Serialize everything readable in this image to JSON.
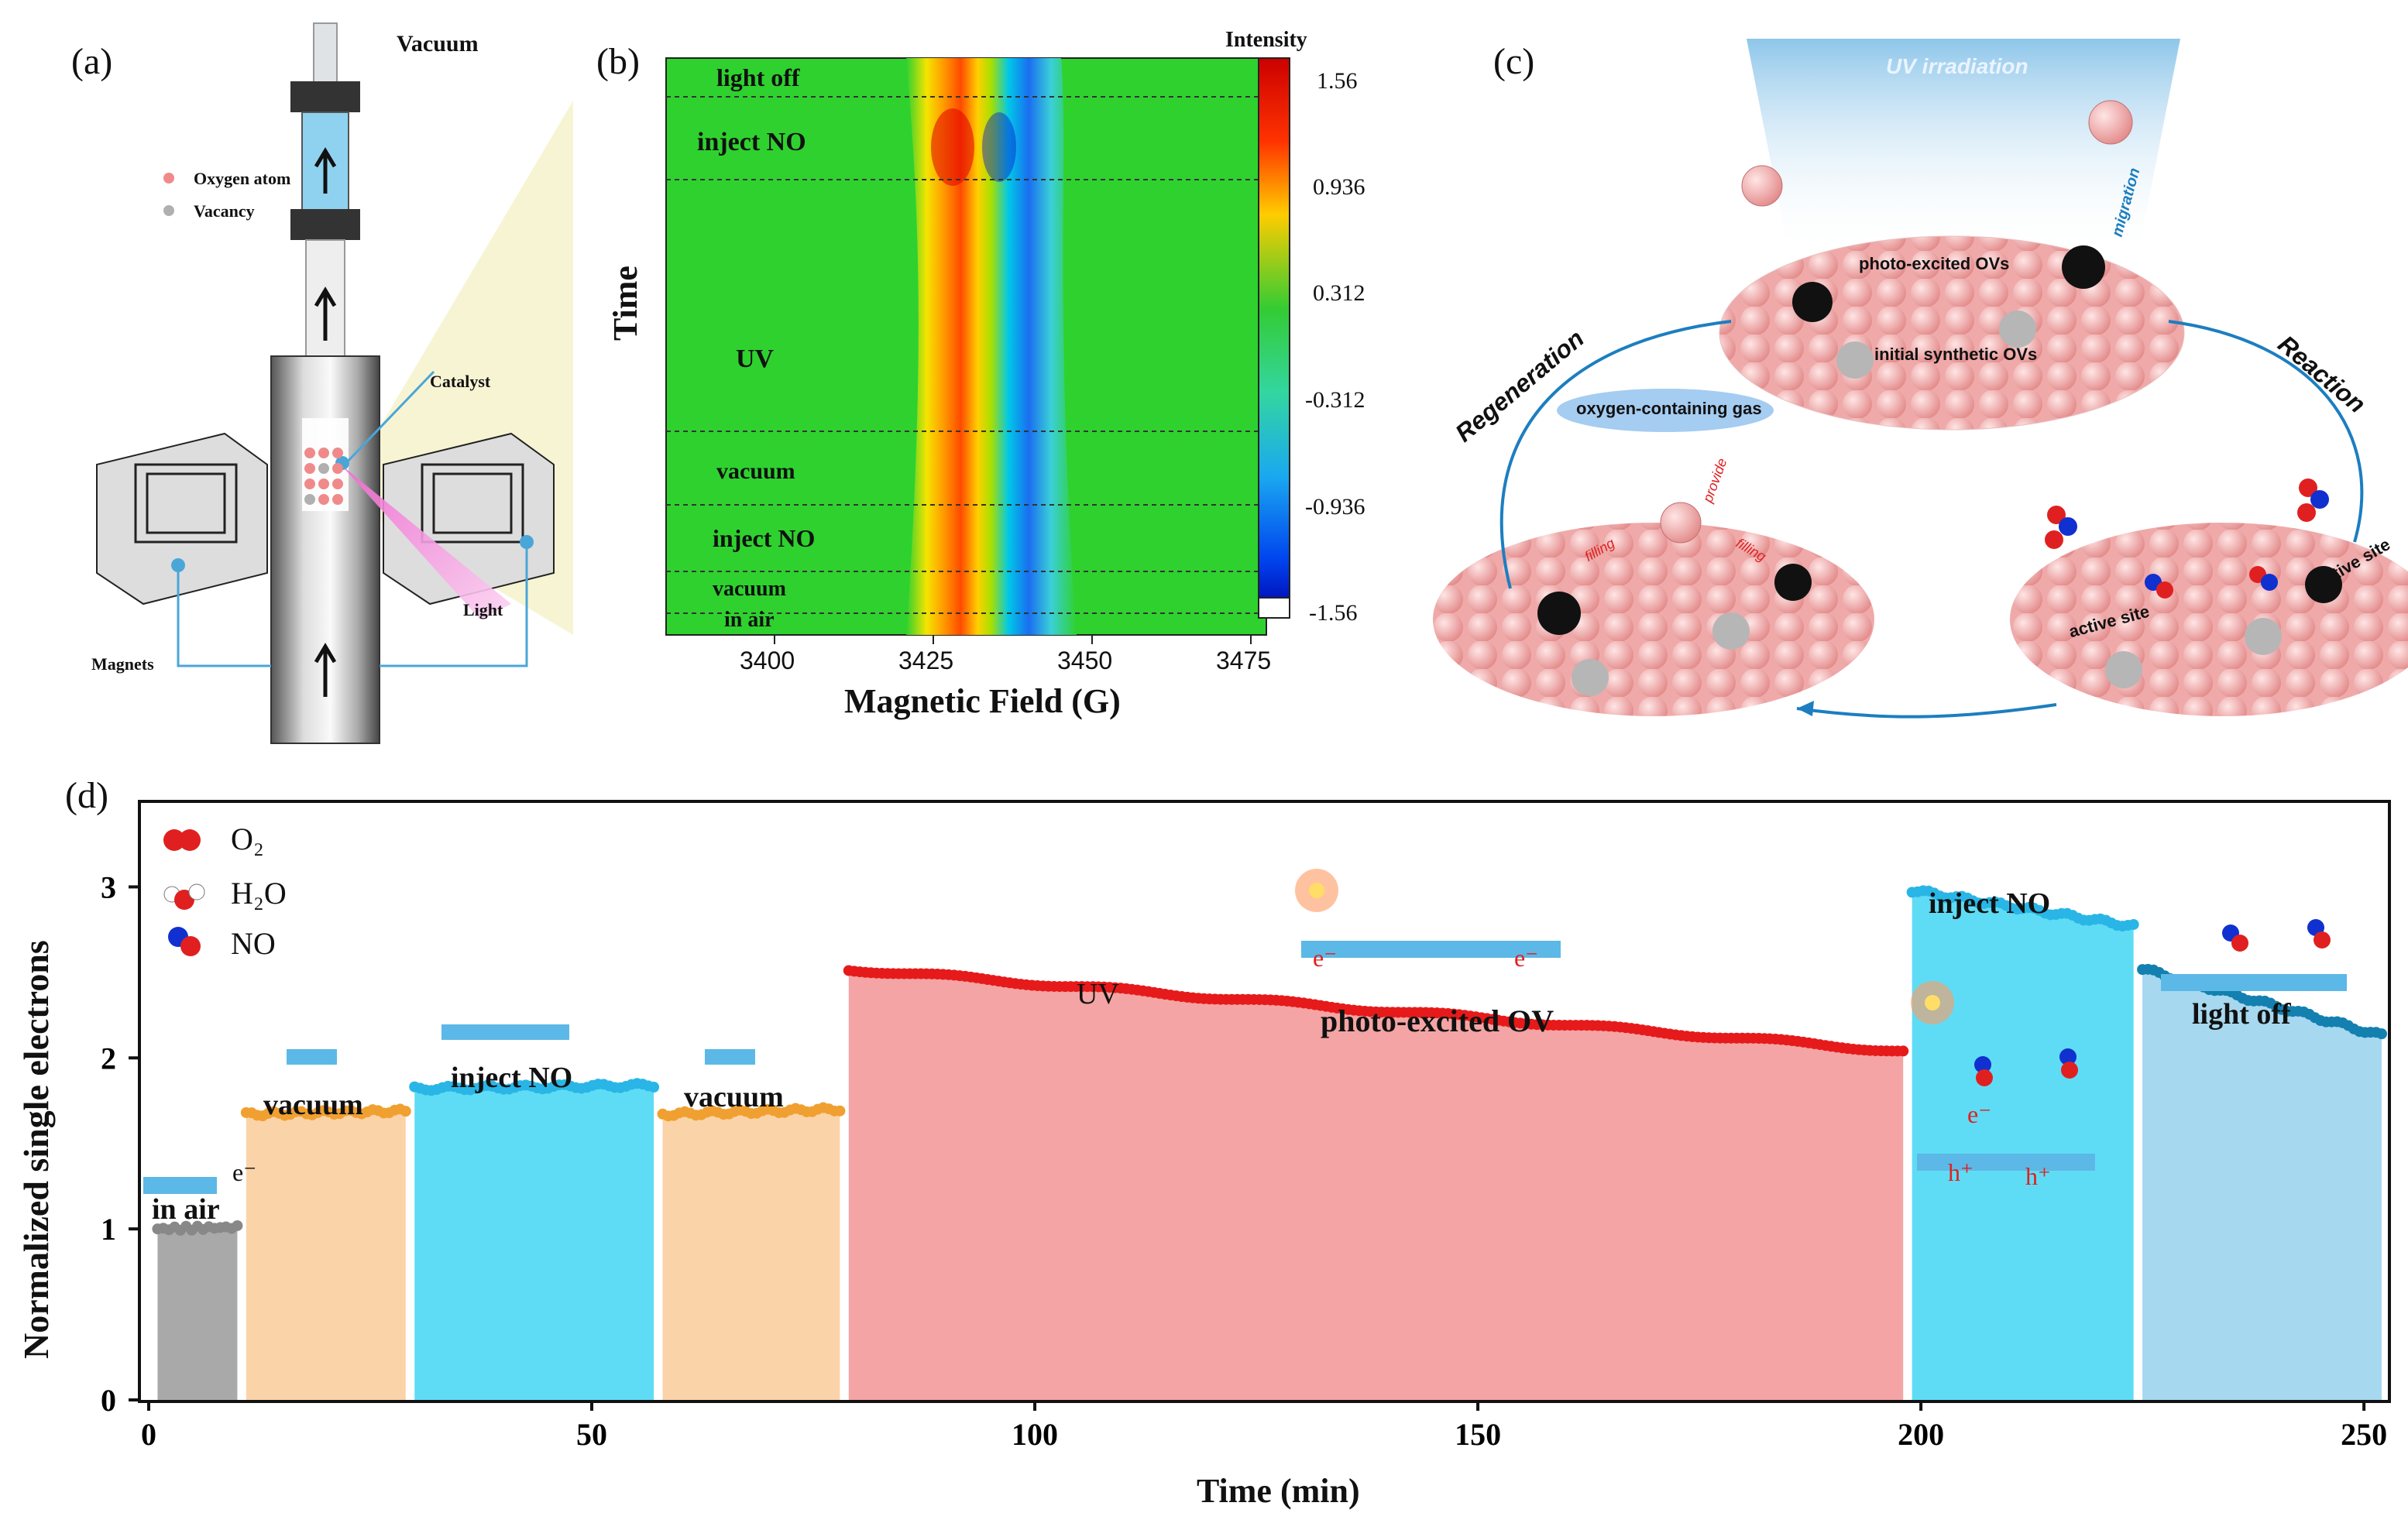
{
  "panels": {
    "a": "(a)",
    "b": "(b)",
    "c": "(c)",
    "d": "(d)"
  },
  "panel_a": {
    "vacuum": "Vacuum",
    "legend": [
      "Oxygen atom",
      "Vacancy"
    ],
    "catalyst": "Catalyst",
    "light": "Light",
    "magnets": "Magnets",
    "colors": {
      "oxygen": "#f08a8a",
      "vacancy": "#b0b0b0",
      "line": "#4aa6d8"
    }
  },
  "panel_b": {
    "ylabel": "Time",
    "xlabel": "Magnetic Field (G)",
    "xticks": [
      "3400",
      "3425",
      "3450",
      "3475"
    ],
    "stages": [
      "light off",
      "inject NO",
      "UV",
      "vacuum",
      "inject NO",
      "vacuum",
      "in air"
    ],
    "colorbar_title": "Intensity",
    "colorbar_ticks": [
      "1.56",
      "0.936",
      "0.312",
      "-0.312",
      "-0.936",
      "-1.56"
    ]
  },
  "panel_c": {
    "uv": "UV irradiation",
    "photo_excited": "photo-excited OVs",
    "initial": "initial synthetic OVs",
    "migration": "migration",
    "regeneration": "Regeneration",
    "reaction": "Reaction",
    "gas": "oxygen-containing gas",
    "provide": "provide",
    "filling": "filling",
    "active_site": "active site"
  },
  "panel_d": {
    "legend": [
      "O₂",
      "H₂O",
      "NO"
    ],
    "annotations": {
      "electron": "e⁻",
      "hole": "h⁺",
      "photo_ov": "photo-excited OV"
    }
  },
  "chart_data": {
    "type": "line",
    "title": "",
    "xlabel": "Time (min)",
    "ylabel": "Normalized single electrons",
    "xlim": [
      0,
      252
    ],
    "ylim": [
      0,
      3.5
    ],
    "xticks": [
      0,
      50,
      100,
      150,
      200,
      250
    ],
    "yticks": [
      0,
      1,
      2,
      3
    ],
    "series": [
      {
        "name": "in air",
        "x_start": 1,
        "x_end": 10,
        "y_start": 1.0,
        "y_end": 1.01,
        "color": "#888888",
        "fill": "#a9a9a9"
      },
      {
        "name": "vacuum",
        "x_start": 11,
        "x_end": 29,
        "y_start": 1.67,
        "y_end": 1.69,
        "color": "#f0a030",
        "fill": "#fbd3a8"
      },
      {
        "name": "inject NO",
        "x_start": 30,
        "x_end": 57,
        "y_start": 1.82,
        "y_end": 1.84,
        "color": "#29b6e6",
        "fill": "#5fdcf5"
      },
      {
        "name": "vacuum",
        "x_start": 58,
        "x_end": 78,
        "y_start": 1.67,
        "y_end": 1.7,
        "color": "#f0a030",
        "fill": "#fbd3a8"
      },
      {
        "name": "UV",
        "x_start": 79,
        "x_end": 198,
        "y_start": 2.52,
        "y_end": 2.04,
        "color": "#e61a1a",
        "fill": "#f4a4a4"
      },
      {
        "name": "inject NO",
        "x_start": 199,
        "x_end": 224,
        "y_start": 2.98,
        "y_end": 2.77,
        "color": "#29b6e6",
        "fill": "#5fdcf5"
      },
      {
        "name": "light off",
        "x_start": 225,
        "x_end": 252,
        "y_start": 2.52,
        "y_end": 2.13,
        "color": "#1380b0",
        "fill": "#a6d8ef"
      }
    ]
  }
}
